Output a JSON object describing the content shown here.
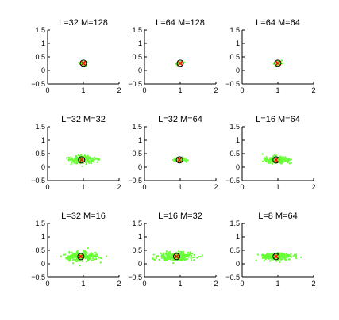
{
  "chart_data": [
    {
      "type": "scatter",
      "title": "L=32 M=128",
      "xlim": [
        0,
        2
      ],
      "ylim": [
        -0.5,
        1.5
      ],
      "xticks": [
        "0",
        "1",
        "2"
      ],
      "yticks": [
        "−0.5",
        "0",
        "0.5",
        "1",
        "1.5"
      ],
      "center": [
        1.0,
        0.27
      ],
      "spread": [
        0.05,
        0.035
      ],
      "n_points": 60
    },
    {
      "type": "scatter",
      "title": "L=64 M=128",
      "xlim": [
        0,
        2
      ],
      "ylim": [
        -0.5,
        1.5
      ],
      "xticks": [
        "0",
        "1",
        "2"
      ],
      "yticks": [
        "−0.5",
        "0",
        "0.5",
        "1",
        "1.5"
      ],
      "center": [
        1.0,
        0.27
      ],
      "spread": [
        0.045,
        0.03
      ],
      "n_points": 60
    },
    {
      "type": "scatter",
      "title": "L=64 M=64",
      "xlim": [
        0,
        2
      ],
      "ylim": [
        -0.5,
        1.5
      ],
      "xticks": [
        "0",
        "1",
        "2"
      ],
      "yticks": [
        "−0.5",
        "0",
        "0.5",
        "1",
        "1.5"
      ],
      "center": [
        1.0,
        0.27
      ],
      "spread": [
        0.06,
        0.04
      ],
      "n_points": 60
    },
    {
      "type": "scatter",
      "title": "L=32 M=32",
      "xlim": [
        0,
        2
      ],
      "ylim": [
        -0.5,
        1.5
      ],
      "xticks": [
        "0",
        "1",
        "2"
      ],
      "yticks": [
        "−0.5",
        "0",
        "0.5",
        "1",
        "1.5"
      ],
      "center": [
        0.95,
        0.27
      ],
      "spread": [
        0.18,
        0.07
      ],
      "n_points": 220
    },
    {
      "type": "scatter",
      "title": "L=32 M=64",
      "xlim": [
        0,
        2
      ],
      "ylim": [
        -0.5,
        1.5
      ],
      "xticks": [
        "0",
        "1",
        "2"
      ],
      "yticks": [
        "−0.5",
        "0",
        "0.5",
        "1",
        "1.5"
      ],
      "center": [
        0.98,
        0.27
      ],
      "spread": [
        0.08,
        0.04
      ],
      "n_points": 100
    },
    {
      "type": "scatter",
      "title": "L=16 M=64",
      "xlim": [
        0,
        2
      ],
      "ylim": [
        -0.5,
        1.5
      ],
      "xticks": [
        "0",
        "1",
        "2"
      ],
      "yticks": [
        "−0.5",
        "0",
        "0.5",
        "1",
        "1.5"
      ],
      "center": [
        0.95,
        0.27
      ],
      "spread": [
        0.17,
        0.06
      ],
      "n_points": 200
    },
    {
      "type": "scatter",
      "title": "L=32 M=16",
      "xlim": [
        0,
        2
      ],
      "ylim": [
        -0.5,
        1.5
      ],
      "xticks": [
        "0",
        "1",
        "2"
      ],
      "yticks": [
        "−0.5",
        "0",
        "0.5",
        "1",
        "1.5"
      ],
      "center": [
        0.93,
        0.27
      ],
      "spread": [
        0.22,
        0.08
      ],
      "n_points": 260
    },
    {
      "type": "scatter",
      "title": "L=16 M=32",
      "xlim": [
        0,
        2
      ],
      "ylim": [
        -0.5,
        1.5
      ],
      "xticks": [
        "0",
        "1",
        "2"
      ],
      "yticks": [
        "−0.5",
        "0",
        "0.5",
        "1",
        "1.5"
      ],
      "center": [
        0.9,
        0.27
      ],
      "spread": [
        0.25,
        0.08
      ],
      "n_points": 260
    },
    {
      "type": "scatter",
      "title": "L=8 M=64",
      "xlim": [
        0,
        2
      ],
      "ylim": [
        -0.5,
        1.5
      ],
      "xticks": [
        "0",
        "1",
        "2"
      ],
      "yticks": [
        "−0.5",
        "0",
        "0.5",
        "1",
        "1.5"
      ],
      "center": [
        0.95,
        0.27
      ],
      "spread": [
        0.2,
        0.07
      ],
      "n_points": 240
    }
  ],
  "colors": {
    "points": "#66ff33",
    "center_marker": "#ff0000",
    "circle": "#000000",
    "axes": "#000000"
  }
}
